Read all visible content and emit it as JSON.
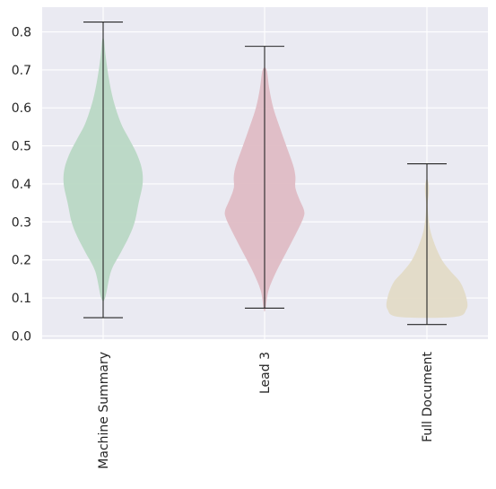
{
  "chart_data": {
    "type": "violin",
    "title": "",
    "xlabel": "",
    "ylabel": "",
    "ylim": [
      -0.0085,
      0.865
    ],
    "yticks": [
      "0.0",
      "0.1",
      "0.2",
      "0.3",
      "0.4",
      "0.5",
      "0.6",
      "0.7",
      "0.8"
    ],
    "grid": true,
    "background": "#eaeaf2",
    "categories": [
      "Machine Summary",
      "Lead 3",
      "Full Document"
    ],
    "series": [
      {
        "color": "#b9d8c4",
        "min": 0.048,
        "max": 0.826,
        "density": [
          [
            0.1,
            0.05
          ],
          [
            0.17,
            0.2
          ],
          [
            0.22,
            0.45
          ],
          [
            0.26,
            0.65
          ],
          [
            0.3,
            0.8
          ],
          [
            0.35,
            0.9
          ],
          [
            0.4,
            1.0
          ],
          [
            0.44,
            0.98
          ],
          [
            0.48,
            0.85
          ],
          [
            0.52,
            0.65
          ],
          [
            0.56,
            0.45
          ],
          [
            0.62,
            0.26
          ],
          [
            0.68,
            0.14
          ],
          [
            0.74,
            0.06
          ],
          [
            0.78,
            0.02
          ]
        ]
      },
      {
        "color": "#dfbcc4",
        "min": 0.073,
        "max": 0.762,
        "density": [
          [
            0.07,
            0.02
          ],
          [
            0.12,
            0.1
          ],
          [
            0.17,
            0.3
          ],
          [
            0.22,
            0.55
          ],
          [
            0.27,
            0.8
          ],
          [
            0.31,
            0.98
          ],
          [
            0.33,
            1.0
          ],
          [
            0.36,
            0.88
          ],
          [
            0.39,
            0.78
          ],
          [
            0.42,
            0.78
          ],
          [
            0.45,
            0.72
          ],
          [
            0.5,
            0.55
          ],
          [
            0.55,
            0.38
          ],
          [
            0.6,
            0.22
          ],
          [
            0.65,
            0.12
          ],
          [
            0.7,
            0.05
          ]
        ]
      },
      {
        "color": "#e3dbc6",
        "min": 0.03,
        "max": 0.453,
        "density": [
          [
            0.05,
            0.7
          ],
          [
            0.07,
            1.0
          ],
          [
            0.1,
            1.0
          ],
          [
            0.14,
            0.85
          ],
          [
            0.17,
            0.6
          ],
          [
            0.2,
            0.38
          ],
          [
            0.24,
            0.2
          ],
          [
            0.28,
            0.08
          ],
          [
            0.32,
            0.03
          ],
          [
            0.35,
            0.02
          ],
          [
            0.37,
            0.04
          ],
          [
            0.39,
            0.05
          ],
          [
            0.41,
            0.02
          ]
        ]
      }
    ]
  }
}
